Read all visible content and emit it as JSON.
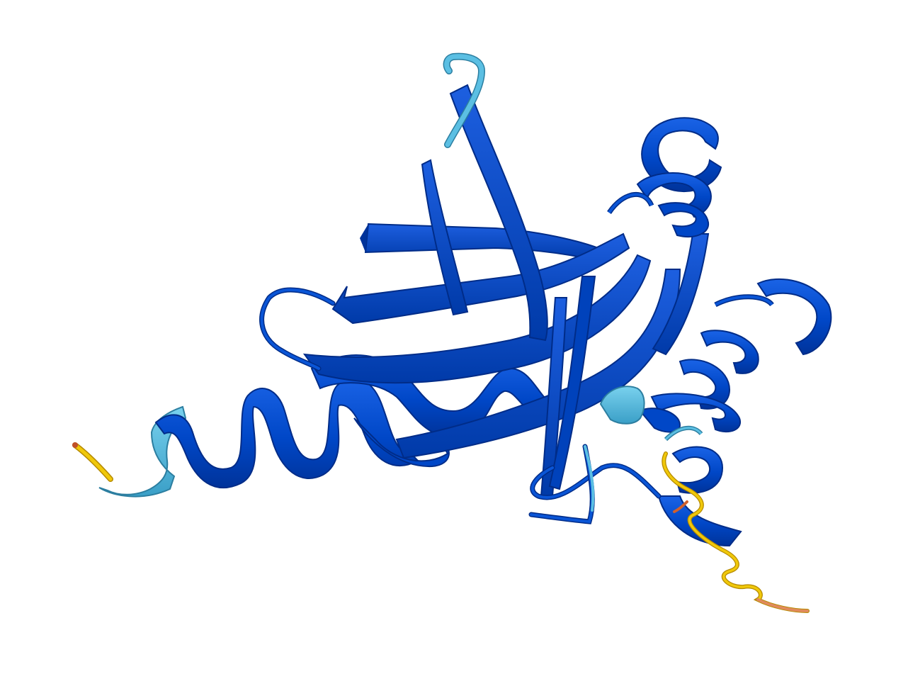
{
  "image": {
    "subject": "protein-structure-cartoon",
    "background": "#ffffff"
  },
  "colors": {
    "very_high_confidence": "#0047c7",
    "very_high_dark": "#00339a",
    "very_high_light": "#1760e0",
    "confident": "#5bbfe3",
    "confident_dark": "#3a95b8",
    "low": "#ecc500",
    "low_dark": "#b89400",
    "very_low": "#e08a5c"
  }
}
